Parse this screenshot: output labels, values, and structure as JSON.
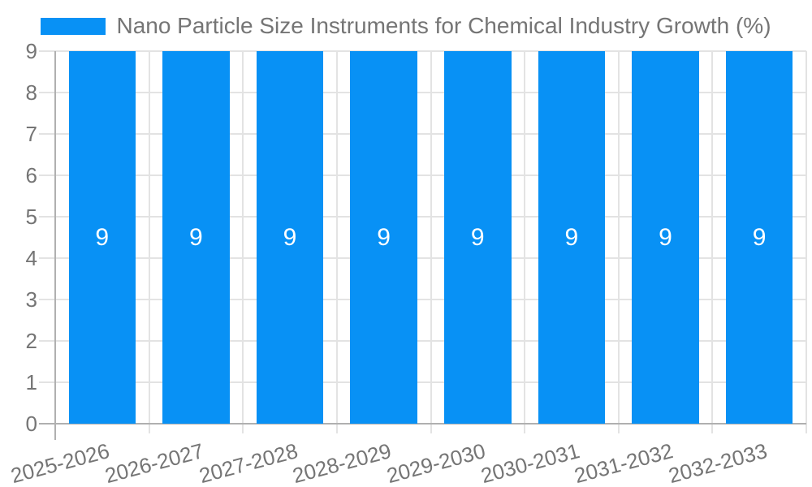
{
  "legend": {
    "label": "Nano Particle Size Instruments for Chemical Industry Growth (%)"
  },
  "chart_data": {
    "type": "bar",
    "title": "Nano Particle Size Instruments for Chemical Industry Growth (%)",
    "categories": [
      "2025-2026",
      "2026-2027",
      "2027-2028",
      "2028-2029",
      "2029-2030",
      "2030-2031",
      "2031-2032",
      "2032-2033"
    ],
    "values": [
      9,
      9,
      9,
      9,
      9,
      9,
      9,
      9
    ],
    "bar_labels": [
      "9",
      "9",
      "9",
      "9",
      "9",
      "9",
      "9",
      "9"
    ],
    "xlabel": "",
    "ylabel": "",
    "ylim": [
      0,
      9
    ],
    "yticks": [
      0,
      1,
      2,
      3,
      4,
      5,
      6,
      7,
      8,
      9
    ],
    "grid": true,
    "legend_position": "top-center",
    "xtick_rotation_deg": -15,
    "colors": {
      "bar": "#0891f5",
      "bar_label": "#ffffff",
      "axis_text": "#757575",
      "gridline": "#e3e3e3",
      "axis_line": "#b0b0b0",
      "background": "#ffffff"
    }
  }
}
